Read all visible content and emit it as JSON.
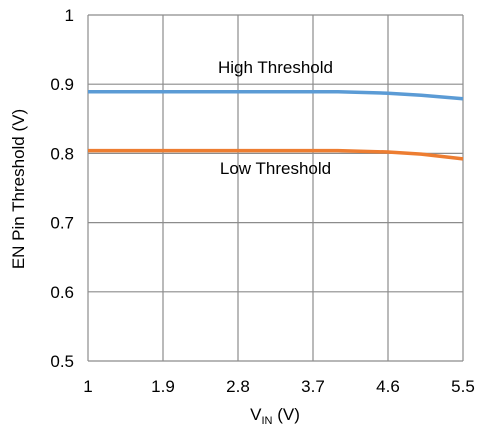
{
  "chart_data": {
    "type": "line",
    "xlabel_main": "V",
    "xlabel_sub": "IN",
    "xlabel_unit": " (V)",
    "ylabel": "EN Pin Threshold (V)",
    "x_ticks": [
      "1",
      "1.9",
      "2.8",
      "3.7",
      "4.6",
      "5.5"
    ],
    "y_ticks": [
      "0.5",
      "0.6",
      "0.7",
      "0.8",
      "0.9",
      "1"
    ],
    "xlim": [
      1,
      5.5
    ],
    "ylim": [
      0.5,
      1.0
    ],
    "grid": true,
    "series": [
      {
        "name": "High Threshold",
        "color": "#5b9bd5",
        "x": [
          1,
          1.9,
          2.8,
          3.7,
          4.0,
          4.6,
          5.0,
          5.5
        ],
        "y": [
          0.889,
          0.889,
          0.889,
          0.889,
          0.889,
          0.887,
          0.884,
          0.879
        ]
      },
      {
        "name": "Low Threshold",
        "color": "#ed7d31",
        "x": [
          1,
          1.9,
          2.8,
          3.7,
          4.0,
          4.6,
          5.0,
          5.5
        ],
        "y": [
          0.804,
          0.804,
          0.804,
          0.804,
          0.804,
          0.802,
          0.799,
          0.792
        ]
      }
    ],
    "annotations": [
      {
        "text": "High Threshold",
        "x": 3.25,
        "y": 0.916
      },
      {
        "text": "Low Threshold",
        "x": 3.25,
        "y": 0.77
      }
    ]
  }
}
